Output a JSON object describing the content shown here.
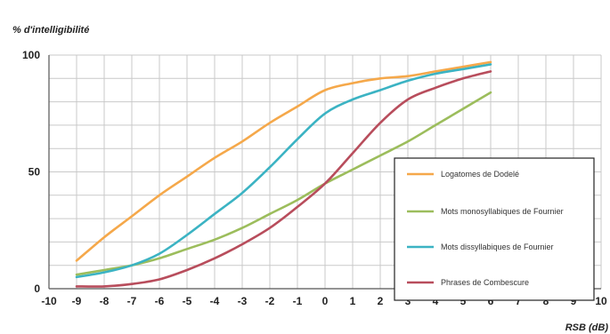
{
  "chart_data": {
    "type": "line",
    "ylabel": "% d'intelligibilité",
    "xlabel": "RSB (dB)",
    "xlim": [
      -10,
      10
    ],
    "ylim": [
      0,
      100
    ],
    "x_ticks": [
      -10,
      -9,
      -8,
      -7,
      -6,
      -5,
      -4,
      -3,
      -2,
      -1,
      0,
      1,
      2,
      3,
      4,
      5,
      6,
      7,
      8,
      9,
      10
    ],
    "y_ticks": [
      0,
      50,
      100
    ],
    "grid": true,
    "legend_position": "bottom-right",
    "series": [
      {
        "name": "Logatomes de Dodelé",
        "color": "#f5a84a",
        "x": [
          -9,
          -8,
          -7,
          -6,
          -5,
          -4,
          -3,
          -2,
          -1,
          0,
          1,
          2,
          3,
          4,
          5,
          6
        ],
        "values": [
          12,
          22,
          31,
          40,
          48,
          56,
          63,
          71,
          78,
          85,
          88,
          90,
          91,
          93,
          95,
          97
        ]
      },
      {
        "name": "Mots monosyllabiques de Fournier",
        "color": "#9cbd5c",
        "x": [
          -9,
          -8,
          -7,
          -6,
          -5,
          -4,
          -3,
          -2,
          -1,
          0,
          1,
          2,
          3,
          4,
          5,
          6
        ],
        "values": [
          6,
          8,
          10,
          13,
          17,
          21,
          26,
          32,
          38,
          45,
          51,
          57,
          63,
          70,
          77,
          84
        ]
      },
      {
        "name": "Mots dissyllabiques de Fournier",
        "color": "#3bb3c3",
        "x": [
          -9,
          -8,
          -7,
          -6,
          -5,
          -4,
          -3,
          -2,
          -1,
          0,
          1,
          2,
          3,
          4,
          5,
          6
        ],
        "values": [
          5,
          7,
          10,
          15,
          23,
          32,
          41,
          52,
          64,
          75,
          81,
          85,
          89,
          92,
          94,
          96
        ]
      },
      {
        "name": "Phrases de Combescure",
        "color": "#b84d5c",
        "x": [
          -9,
          -8,
          -7,
          -6,
          -5,
          -4,
          -3,
          -2,
          -1,
          0,
          1,
          2,
          3,
          4,
          5,
          6
        ],
        "values": [
          1,
          1,
          2,
          4,
          8,
          13,
          19,
          26,
          35,
          45,
          58,
          71,
          81,
          86,
          90,
          93
        ]
      }
    ]
  }
}
